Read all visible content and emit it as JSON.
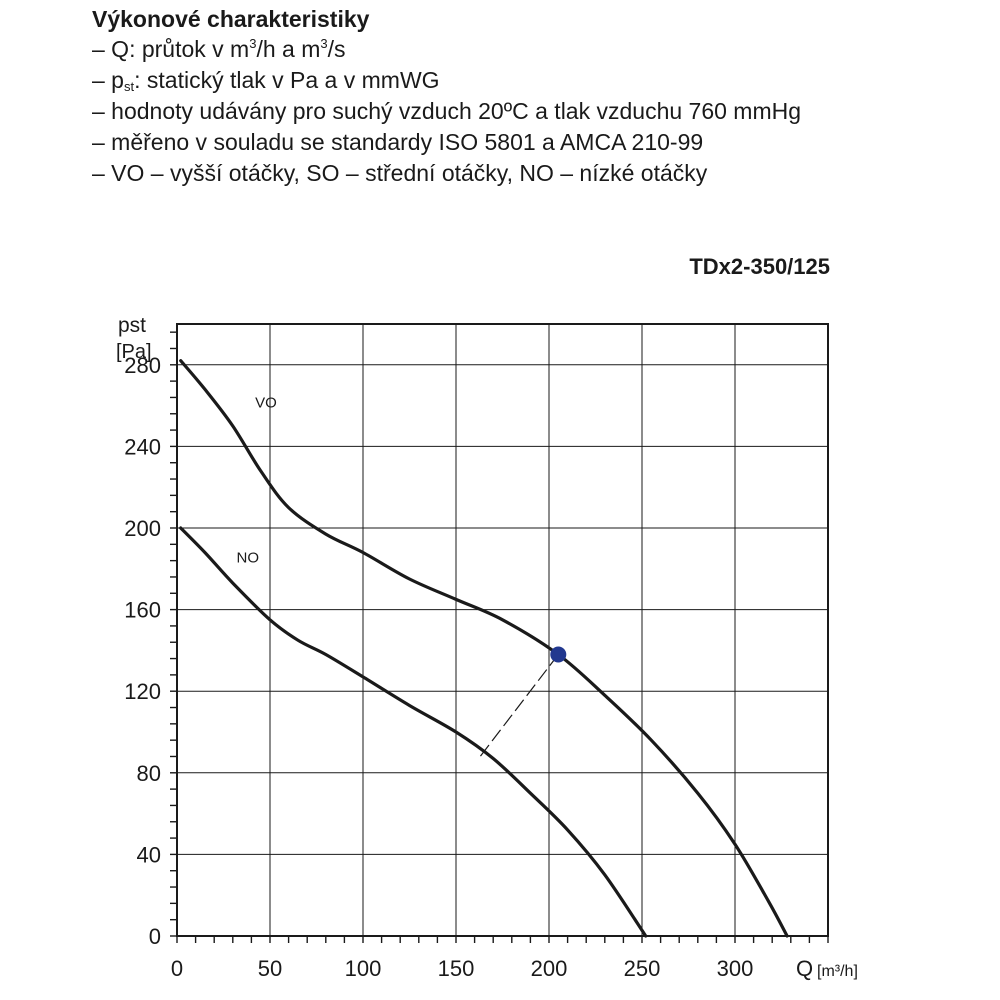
{
  "header": {
    "title": "Výkonové charakteristiky",
    "notes": [
      {
        "segments": [
          {
            "t": "– Q: průtok v m"
          },
          {
            "t": "3",
            "sup": true
          },
          {
            "t": "/h a m"
          },
          {
            "t": "3",
            "sup": true
          },
          {
            "t": "/s"
          }
        ]
      },
      {
        "segments": [
          {
            "t": "– p"
          },
          {
            "t": "st",
            "sub": true
          },
          {
            "t": ": statický tlak v Pa a v mmWG"
          }
        ]
      },
      {
        "segments": [
          {
            "t": "– hodnoty udávány pro suchý vzduch 20ºC a tlak vzduchu 760 mmHg"
          }
        ]
      },
      {
        "segments": [
          {
            "t": "– měřeno v souladu se standardy ISO 5801 a AMCA 210-99"
          }
        ]
      },
      {
        "segments": [
          {
            "t": "– VO – vyšší otáčky, SO – střední otáčky, NO – nízké otáčky"
          }
        ]
      }
    ]
  },
  "model": "TDx2-350/125",
  "chart_data": {
    "type": "line",
    "xlabel": "Q [m³/h]",
    "xlabel_main": "Q",
    "xlabel_unit": "[m³/h]",
    "ylabel_line1": "pst",
    "ylabel_line2": "[Pa]",
    "xlim": [
      0,
      350
    ],
    "ylim": [
      0,
      300
    ],
    "x_ticks": [
      0,
      50,
      100,
      150,
      200,
      250,
      300
    ],
    "y_ticks": [
      0,
      40,
      80,
      120,
      160,
      200,
      240,
      280
    ],
    "grid": true,
    "series": [
      {
        "name": "VO",
        "points": [
          [
            2,
            282
          ],
          [
            15,
            268
          ],
          [
            30,
            250
          ],
          [
            45,
            228
          ],
          [
            60,
            210
          ],
          [
            80,
            197
          ],
          [
            100,
            188
          ],
          [
            125,
            175
          ],
          [
            150,
            165
          ],
          [
            175,
            155
          ],
          [
            205,
            138
          ],
          [
            230,
            118
          ],
          [
            255,
            96
          ],
          [
            280,
            70
          ],
          [
            300,
            45
          ],
          [
            318,
            17
          ],
          [
            328,
            0
          ]
        ]
      },
      {
        "name": "NO",
        "points": [
          [
            2,
            200
          ],
          [
            15,
            188
          ],
          [
            30,
            173
          ],
          [
            50,
            155
          ],
          [
            65,
            145
          ],
          [
            80,
            138
          ],
          [
            100,
            127
          ],
          [
            125,
            113
          ],
          [
            150,
            100
          ],
          [
            170,
            87
          ],
          [
            190,
            70
          ],
          [
            210,
            52
          ],
          [
            230,
            30
          ],
          [
            252,
            0
          ]
        ]
      }
    ],
    "annotations": [
      {
        "text": "VO",
        "x": 42,
        "y": 259
      },
      {
        "text": "NO",
        "x": 32,
        "y": 183
      }
    ],
    "operating_point": {
      "x": 205,
      "y": 138,
      "color": "#22388f"
    },
    "system_curve_dashed": [
      [
        205,
        138
      ],
      [
        163,
        88
      ]
    ],
    "colors": {
      "curve": "#1a1a1a",
      "grid": "#1a1a1a",
      "point": "#22388f"
    }
  }
}
